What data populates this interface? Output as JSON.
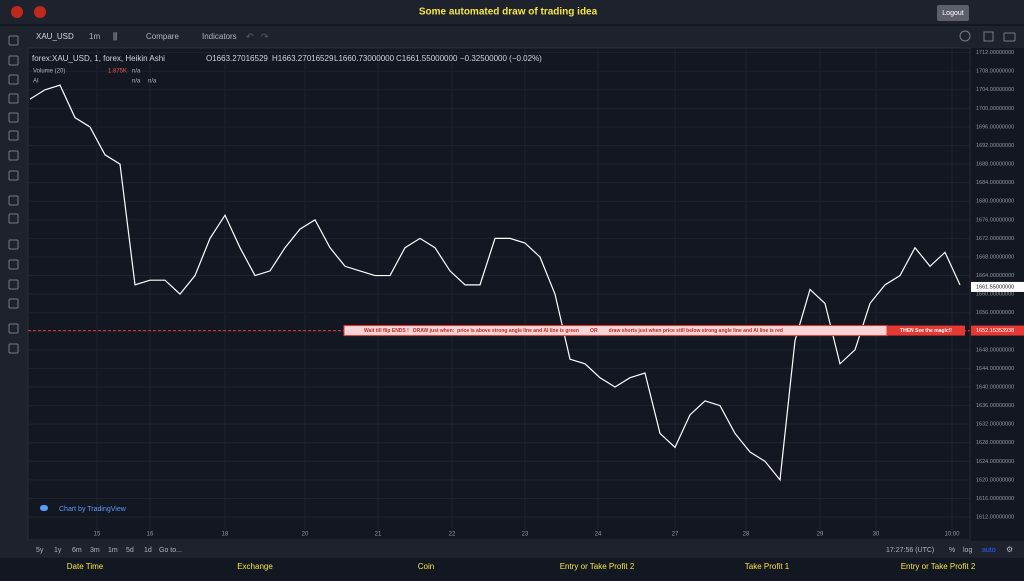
{
  "header": {
    "title": "Some automated draw of trading idea",
    "logout": "Logout"
  },
  "toolbar": {
    "symbol": "XAU_USD",
    "interval": "1m",
    "compare": "Compare",
    "indicators": "Indicators"
  },
  "legend": {
    "series": "forex:XAU_USD, 1, forex, Heikin Ashi",
    "open": "O1663.27016529",
    "high": "H1663.27016529",
    "low": "L1660.73000000",
    "close": "C1661.55000000",
    "change": "−0.32500000 (−0.02%)",
    "volume": "Volume (20)",
    "volume_value": "1.875K",
    "volume_na": "n/a",
    "ai": "AI",
    "ai_na1": "n/a",
    "ai_na2": "n/a"
  },
  "chart_data": {
    "type": "line",
    "color": "#ffffff",
    "values": [
      1702,
      1704,
      1705,
      1698,
      1696,
      1690,
      1688,
      1662,
      1663,
      1663,
      1660,
      1664,
      1672,
      1677,
      1670,
      1664,
      1665,
      1670,
      1674,
      1676,
      1670,
      1666,
      1665,
      1664,
      1664,
      1670,
      1672,
      1670,
      1665,
      1662,
      1662,
      1672,
      1672,
      1671,
      1668,
      1660,
      1646,
      1645,
      1642,
      1640,
      1642,
      1643,
      1630,
      1627,
      1634,
      1637,
      1636,
      1630,
      1626,
      1624,
      1620,
      1650,
      1661,
      1658,
      1645,
      1648,
      1658,
      1662,
      1664,
      1670,
      1666,
      1669,
      1662
    ],
    "ylim": [
      1610.5,
      1713
    ],
    "yticks": [
      {
        "value": 1612,
        "label": "1612.00000000"
      },
      {
        "value": 1616,
        "label": "1616.00000000"
      },
      {
        "value": 1620,
        "label": "1620.00000000"
      },
      {
        "value": 1624,
        "label": "1624.00000000"
      },
      {
        "value": 1628,
        "label": "1628.00000000"
      },
      {
        "value": 1632,
        "label": "1632.00000000"
      },
      {
        "value": 1636,
        "label": "1636.00000000"
      },
      {
        "value": 1640,
        "label": "1640.00000000"
      },
      {
        "value": 1644,
        "label": "1644.00000000"
      },
      {
        "value": 1648,
        "label": "1648.00000000"
      },
      {
        "value": 1652,
        "label": "1652.00000000"
      },
      {
        "value": 1656,
        "label": "1656.00000000"
      },
      {
        "value": 1660,
        "label": "1660.00000000"
      },
      {
        "value": 1664,
        "label": "1664.00000000"
      },
      {
        "value": 1668,
        "label": "1668.00000000"
      },
      {
        "value": 1672,
        "label": "1672.00000000"
      },
      {
        "value": 1676,
        "label": "1676.00000000"
      },
      {
        "value": 1680,
        "label": "1680.00000000"
      },
      {
        "value": 1684,
        "label": "1684.00000000"
      },
      {
        "value": 1688,
        "label": "1688.00000000"
      },
      {
        "value": 1692,
        "label": "1692.00000000"
      },
      {
        "value": 1696,
        "label": "1696.00000000"
      },
      {
        "value": 1700,
        "label": "1700.00000000"
      },
      {
        "value": 1704,
        "label": "1704.00000000"
      },
      {
        "value": 1708,
        "label": "1708.00000000"
      },
      {
        "value": 1712,
        "label": "1712.00000000"
      }
    ],
    "x_axis_labels": [
      "15",
      "16",
      "18",
      "20",
      "21",
      "22",
      "23",
      "24",
      "27",
      "28",
      "29",
      "30",
      "10:00"
    ],
    "grid": true,
    "signal_line": {
      "value": 1652.15353938,
      "label": "1652.15353938",
      "text": "Wait till flip ENDS !   DRAW just when:  price is above strong angle line and AI line is green        OR        draw shorts just when price still below strong angle line and AI line is red",
      "text2": "THEN See the magic!!"
    },
    "last_price": {
      "value": 1661.55,
      "label": "1661.55000000"
    },
    "watermark": "Chart by TradingView"
  },
  "bottom_bar": {
    "ranges": [
      "5y",
      "1y",
      "6m",
      "3m",
      "1m",
      "5d",
      "1d"
    ],
    "goto": "Go to...",
    "time": "17:27:56 (UTC)",
    "percent": "%",
    "log": "log",
    "auto": "auto"
  },
  "footer": [
    "Date Time",
    "Exchange",
    "Coin",
    "Entry or Take Profit 2",
    "Take Profit 1",
    "Entry or Take Profit 2"
  ]
}
